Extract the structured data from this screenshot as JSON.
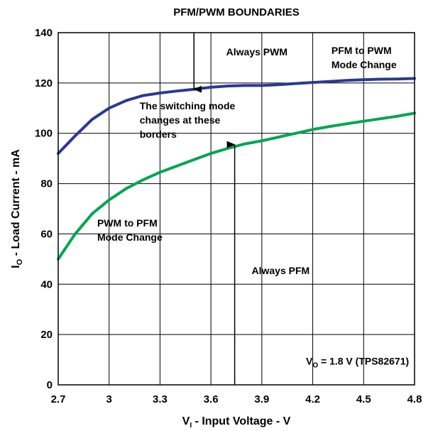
{
  "chart_data": {
    "type": "line",
    "title": "PFM/PWM BOUNDARIES",
    "xlabel": {
      "main": "V",
      "sub": "I",
      "rest": " - Input Voltage - V"
    },
    "ylabel": {
      "main": "I",
      "sub": "O",
      "rest": " - Load Current - mA"
    },
    "xlim": [
      2.7,
      4.8
    ],
    "ylim": [
      0,
      140
    ],
    "xticks": [
      "2.7",
      "3",
      "3.3",
      "3.6",
      "3.9",
      "4.2",
      "4.5",
      "4.8"
    ],
    "yticks": [
      "0",
      "20",
      "40",
      "60",
      "80",
      "100",
      "120",
      "140"
    ],
    "grid": true,
    "series": [
      {
        "color": "#2b3990",
        "x": [
          2.7,
          2.8,
          2.9,
          3.0,
          3.1,
          3.2,
          3.3,
          3.4,
          3.5,
          3.6,
          3.7,
          3.8,
          3.9,
          4.0,
          4.1,
          4.2,
          4.3,
          4.4,
          4.5,
          4.6,
          4.7,
          4.8
        ],
        "y": [
          92,
          99,
          105.5,
          110,
          113,
          115,
          116,
          116.8,
          117.5,
          118.3,
          118.8,
          119,
          119,
          119.3,
          119.8,
          120.2,
          120.6,
          121,
          121.3,
          121.5,
          121.6,
          121.8
        ]
      },
      {
        "color": "#00a651",
        "x": [
          2.7,
          2.8,
          2.9,
          3.0,
          3.1,
          3.2,
          3.3,
          3.4,
          3.5,
          3.6,
          3.7,
          3.8,
          3.9,
          4.0,
          4.1,
          4.2,
          4.3,
          4.4,
          4.5,
          4.6,
          4.7,
          4.8
        ],
        "y": [
          50,
          60,
          68,
          73.5,
          78,
          81.5,
          84.5,
          87,
          89.5,
          92,
          94,
          95.8,
          97,
          98.5,
          100,
          101.5,
          102.7,
          103.8,
          104.8,
          105.8,
          106.8,
          108
        ]
      }
    ],
    "annotations": [
      {
        "id": "always-pwm",
        "lines": [
          "Always PWM"
        ],
        "x": 3.69,
        "y": 131
      },
      {
        "id": "pfm-to-pwm",
        "lines": [
          "PFM to PWM",
          "Mode Change"
        ],
        "x": 4.31,
        "y": 131.5,
        "dy": 20
      },
      {
        "id": "switching-mode",
        "lines": [
          "The switching mode",
          "changes at these",
          "borders"
        ],
        "x": 3.18,
        "y": 109.5,
        "dy": 20
      },
      {
        "id": "pwm-to-pfm",
        "lines": [
          "PWM to PFM",
          "Mode Change"
        ],
        "x": 2.93,
        "y": 63,
        "dy": 20
      },
      {
        "id": "always-pfm",
        "lines": [
          "Always PFM"
        ],
        "x": 3.84,
        "y": 44
      },
      {
        "id": "vo-label",
        "lines": [
          "V",
          "O",
          " = 1.8 V (TPS82671)"
        ],
        "x": 4.16,
        "y": 8
      }
    ],
    "arrows": [
      {
        "id": "pwm-arrow",
        "x": 3.5,
        "from_y": 140,
        "to_y": 117.5
      },
      {
        "id": "pfm-arrow",
        "x": 3.74,
        "from_y": 0,
        "to_y": 95.5
      }
    ]
  }
}
